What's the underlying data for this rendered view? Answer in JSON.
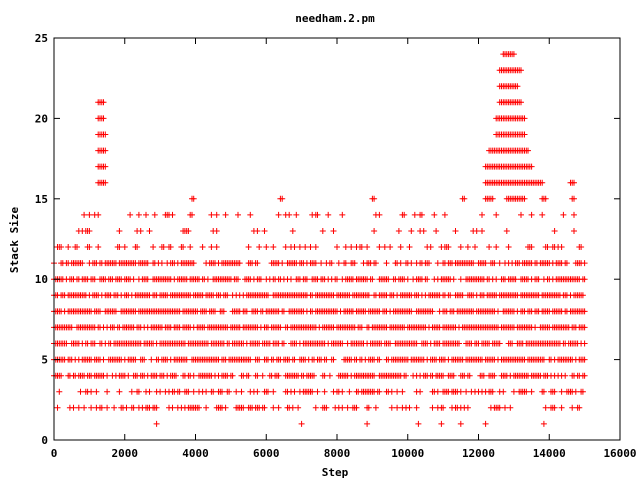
{
  "chart_data": {
    "type": "scatter",
    "title": "needham.2.pm",
    "xlabel": "Step",
    "ylabel": "Stack Size",
    "xlim": [
      0,
      16000
    ],
    "ylim": [
      0,
      25
    ],
    "x_ticks": [
      0,
      2000,
      4000,
      6000,
      8000,
      10000,
      12000,
      14000,
      16000
    ],
    "y_ticks": [
      0,
      5,
      10,
      15,
      20,
      25
    ],
    "grid": false,
    "legend": "none",
    "marker": "plus",
    "color": "#ff0000",
    "x_max_step": 15000,
    "levels": [
      {
        "y": 1,
        "density": 0.03
      },
      {
        "y": 2,
        "density": 0.35
      },
      {
        "y": 3,
        "density": 0.45
      },
      {
        "y": 4,
        "density": 0.65
      },
      {
        "y": 5,
        "density": 0.75
      },
      {
        "y": 6,
        "density": 0.8
      },
      {
        "y": 7,
        "density": 0.85
      },
      {
        "y": 8,
        "density": 0.85
      },
      {
        "y": 9,
        "density": 0.85
      },
      {
        "y": 10,
        "density": 0.7
      },
      {
        "y": 11,
        "density": 0.55
      },
      {
        "y": 12,
        "density": 0.25
      },
      {
        "y": 13,
        "density": 0.15
      },
      {
        "y": 14,
        "density": 0.2
      },
      {
        "y": 15,
        "ranges": [
          [
            3900,
            3950
          ],
          [
            6400,
            6450
          ],
          [
            9000,
            9050
          ],
          [
            11550,
            11600
          ],
          [
            12200,
            12400
          ],
          [
            12800,
            13300
          ],
          [
            13800,
            13900
          ],
          [
            14650,
            14700
          ]
        ]
      },
      {
        "y": 16,
        "ranges": [
          [
            1250,
            1450
          ],
          [
            12200,
            13800
          ],
          [
            14600,
            14700
          ]
        ]
      },
      {
        "y": 17,
        "ranges": [
          [
            1250,
            1450
          ],
          [
            12200,
            13500
          ]
        ]
      },
      {
        "y": 18,
        "ranges": [
          [
            1250,
            1450
          ],
          [
            12300,
            13400
          ]
        ]
      },
      {
        "y": 19,
        "ranges": [
          [
            1250,
            1450
          ],
          [
            12500,
            13300
          ]
        ]
      },
      {
        "y": 20,
        "ranges": [
          [
            1250,
            1400
          ],
          [
            12500,
            13300
          ]
        ]
      },
      {
        "y": 21,
        "ranges": [
          [
            1250,
            1400
          ],
          [
            12600,
            13200
          ]
        ]
      },
      {
        "y": 22,
        "ranges": [
          [
            12600,
            13100
          ]
        ]
      },
      {
        "y": 23,
        "ranges": [
          [
            12600,
            13200
          ]
        ]
      },
      {
        "y": 24,
        "ranges": [
          [
            12700,
            13000
          ]
        ]
      }
    ]
  }
}
